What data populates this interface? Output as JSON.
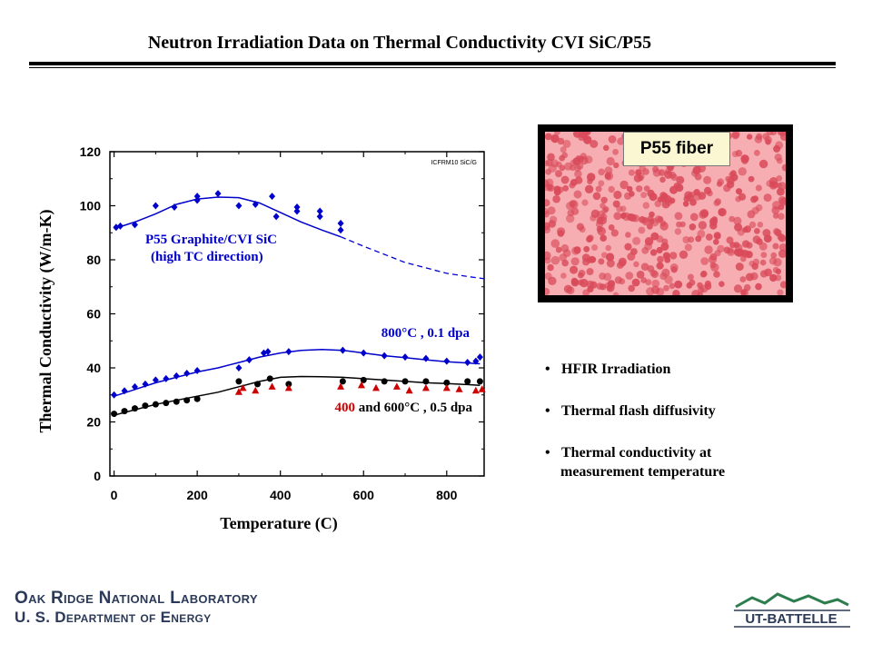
{
  "title": "Neutron Irradiation Data on Thermal Conductivity CVI SiC/P55",
  "image_caption": "P55 fiber",
  "bullets": [
    {
      "line1": "HFIR Irradiation",
      "line2": ""
    },
    {
      "line1": "Thermal flash diffusivity",
      "line2": ""
    },
    {
      "line1": "Thermal conductivity at",
      "line2": "measurement temperature"
    }
  ],
  "footer": {
    "org_line1": "Oak Ridge National Laboratory",
    "org_line2": "U. S. Department of Energy",
    "logo_text": "UT-BATTELLE"
  },
  "colors": {
    "blue": "#0000cc",
    "black": "#000000",
    "red": "#cc0000",
    "fiber_background": "#f6aeb2",
    "fiber_dots": "#d94a5a",
    "logo_green": "#2e7d4f"
  },
  "chart_data": {
    "type": "scatter",
    "xlabel": "Temperature (C)",
    "ylabel": "Thermal Conductivity (W/m-K)",
    "xlim": [
      -10,
      890
    ],
    "ylim": [
      0,
      120
    ],
    "xticks": [
      "0",
      "200",
      "400",
      "600",
      "800"
    ],
    "yticks": [
      "0",
      "20",
      "40",
      "60",
      "80",
      "100",
      "120"
    ],
    "corner_note": "ICFRM10 SiC/G",
    "annotations": [
      {
        "text": "P55 Graphite/CVI SiC",
        "color": "blue"
      },
      {
        "text": "(high TC direction)",
        "color": "blue"
      },
      {
        "text": "800°C , 0.1 dpa",
        "color": "blue"
      },
      {
        "text": "400",
        "color": "red"
      },
      {
        "text": " and 600°C , 0.5 dpa",
        "color": "black"
      }
    ],
    "series": [
      {
        "name": "P55 Graphite/CVI SiC (high TC direction)",
        "marker": "diamond",
        "color": "blue",
        "points": [
          [
            5,
            92
          ],
          [
            15,
            92.5
          ],
          [
            50,
            93
          ],
          [
            100,
            100
          ],
          [
            145,
            99.5
          ],
          [
            200,
            102
          ],
          [
            200,
            103.5
          ],
          [
            250,
            104.5
          ],
          [
            300,
            100
          ],
          [
            340,
            100.5
          ],
          [
            380,
            103.5
          ],
          [
            390,
            96
          ],
          [
            440,
            99.5
          ],
          [
            440,
            98
          ],
          [
            495,
            98
          ],
          [
            495,
            96
          ],
          [
            545,
            93.5
          ],
          [
            545,
            91
          ]
        ],
        "fit": [
          [
            0,
            91.5
          ],
          [
            50,
            94
          ],
          [
            100,
            97
          ],
          [
            150,
            100.5
          ],
          [
            200,
            102.5
          ],
          [
            250,
            103.2
          ],
          [
            300,
            103
          ],
          [
            350,
            101
          ],
          [
            400,
            97.5
          ],
          [
            450,
            94
          ],
          [
            500,
            91
          ],
          [
            545,
            88.5
          ]
        ],
        "fit_extrapolated": [
          [
            545,
            88.5
          ],
          [
            600,
            85
          ],
          [
            650,
            82
          ],
          [
            700,
            79
          ],
          [
            750,
            77
          ],
          [
            800,
            75
          ],
          [
            850,
            73.8
          ],
          [
            890,
            73
          ]
        ]
      },
      {
        "name": "800°C , 0.1 dpa",
        "marker": "diamond",
        "color": "blue",
        "points": [
          [
            0,
            30
          ],
          [
            25,
            31.5
          ],
          [
            50,
            33
          ],
          [
            75,
            34
          ],
          [
            100,
            35.5
          ],
          [
            125,
            36
          ],
          [
            150,
            37
          ],
          [
            175,
            38
          ],
          [
            200,
            39
          ],
          [
            300,
            40
          ],
          [
            325,
            43
          ],
          [
            360,
            45.5
          ],
          [
            370,
            46
          ],
          [
            420,
            46
          ],
          [
            550,
            46.5
          ],
          [
            600,
            45.5
          ],
          [
            650,
            44.5
          ],
          [
            700,
            44
          ],
          [
            750,
            43.5
          ],
          [
            800,
            42.5
          ],
          [
            850,
            42
          ],
          [
            870,
            42.5
          ],
          [
            880,
            44
          ]
        ],
        "fit": [
          [
            0,
            29.5
          ],
          [
            50,
            32
          ],
          [
            100,
            34.5
          ],
          [
            150,
            36.5
          ],
          [
            200,
            38.5
          ],
          [
            250,
            40
          ],
          [
            300,
            42
          ],
          [
            350,
            44
          ],
          [
            400,
            45.5
          ],
          [
            450,
            46.5
          ],
          [
            500,
            46.8
          ],
          [
            550,
            46.5
          ],
          [
            600,
            45.5
          ],
          [
            650,
            44.5
          ],
          [
            700,
            43.8
          ],
          [
            750,
            43
          ],
          [
            800,
            42.3
          ],
          [
            850,
            41.8
          ],
          [
            880,
            41.5
          ]
        ]
      },
      {
        "name": "400 and 600°C , 0.5 dpa (circles)",
        "marker": "circle",
        "color": "black",
        "points": [
          [
            0,
            23
          ],
          [
            25,
            24
          ],
          [
            50,
            25
          ],
          [
            75,
            26
          ],
          [
            100,
            26.5
          ],
          [
            125,
            27
          ],
          [
            150,
            27.5
          ],
          [
            175,
            28
          ],
          [
            200,
            28.5
          ],
          [
            300,
            35
          ],
          [
            345,
            34
          ],
          [
            375,
            36
          ],
          [
            420,
            34
          ],
          [
            550,
            35
          ],
          [
            600,
            35.5
          ],
          [
            650,
            35
          ],
          [
            700,
            35
          ],
          [
            750,
            35
          ],
          [
            800,
            34.5
          ],
          [
            850,
            35
          ],
          [
            880,
            35
          ]
        ],
        "fit": [
          [
            0,
            22.5
          ],
          [
            50,
            24.5
          ],
          [
            100,
            26.5
          ],
          [
            150,
            28
          ],
          [
            200,
            29.5
          ],
          [
            250,
            31
          ],
          [
            300,
            33
          ],
          [
            350,
            35
          ],
          [
            400,
            36.5
          ],
          [
            450,
            36.8
          ],
          [
            500,
            36.7
          ],
          [
            550,
            36.5
          ],
          [
            600,
            36
          ],
          [
            650,
            35.5
          ],
          [
            700,
            35
          ],
          [
            750,
            34.5
          ],
          [
            800,
            34.2
          ],
          [
            850,
            33.8
          ],
          [
            880,
            33.5
          ]
        ]
      },
      {
        "name": "400 and 600°C , 0.5 dpa (triangles)",
        "marker": "triangle",
        "color": "red",
        "points": [
          [
            300,
            31
          ],
          [
            310,
            32.5
          ],
          [
            340,
            31.5
          ],
          [
            380,
            33
          ],
          [
            420,
            32.5
          ],
          [
            545,
            33
          ],
          [
            595,
            33.5
          ],
          [
            630,
            32.5
          ],
          [
            680,
            33
          ],
          [
            710,
            31.5
          ],
          [
            750,
            32.5
          ],
          [
            800,
            32.5
          ],
          [
            830,
            32
          ],
          [
            870,
            31.5
          ],
          [
            885,
            32
          ]
        ]
      }
    ]
  }
}
